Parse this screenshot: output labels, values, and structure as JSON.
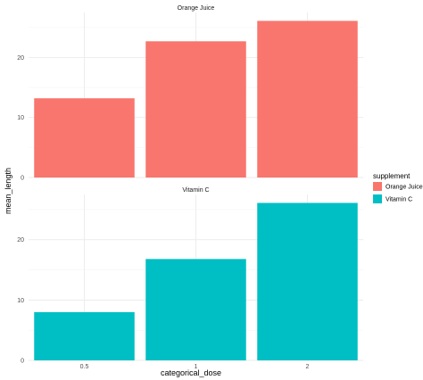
{
  "chart_data": {
    "type": "bar",
    "facet_by": "supplement",
    "categories": [
      "0.5",
      "1",
      "2"
    ],
    "xlabel": "categorical_dose",
    "ylabel": "mean_length",
    "ylim": [
      0,
      27.5
    ],
    "yticks": [
      0,
      10,
      20
    ],
    "grid": true,
    "legend": {
      "title": "supplement",
      "placement": "right",
      "entries": [
        {
          "label": "Orange Juice",
          "color": "#F8766D"
        },
        {
          "label": "Vitamin C",
          "color": "#00BFC4"
        }
      ]
    },
    "panels": [
      {
        "title": "Orange Juice",
        "color": "#F8766D",
        "values": [
          13.2,
          22.7,
          26.1
        ]
      },
      {
        "title": "Vitamin C",
        "color": "#00BFC4",
        "values": [
          8.0,
          16.8,
          26.1
        ]
      }
    ]
  }
}
